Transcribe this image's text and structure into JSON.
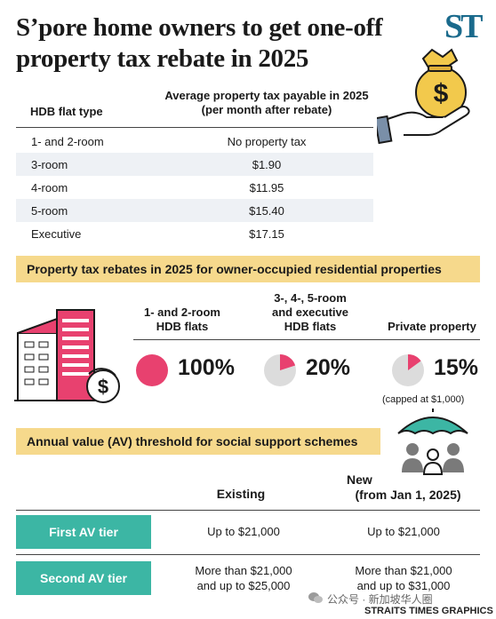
{
  "headline": {
    "line1": "S’pore home owners to get one-off",
    "line2": "property tax rebate in 2025"
  },
  "logo": "ST",
  "table1": {
    "col1_header": "HDB flat type",
    "col2_header_line1": "Average property tax payable in 2025",
    "col2_header_line2": "(per month after rebate)",
    "rows": [
      {
        "type": "1- and 2-room",
        "value": "No property tax"
      },
      {
        "type": "3-room",
        "value": "$1.90"
      },
      {
        "type": "4-room",
        "value": "$11.95"
      },
      {
        "type": "5-room",
        "value": "$15.40"
      },
      {
        "type": "Executive",
        "value": "$17.15"
      }
    ]
  },
  "rebates": {
    "band_title": "Property tax rebates in 2025 for owner-occupied residential properties",
    "columns": [
      {
        "line1": "1- and 2-room",
        "line2": "HDB flats",
        "percent": "100%",
        "fraction": 1.0
      },
      {
        "line0": "3-, 4-, 5-room",
        "line1": "and executive",
        "line2": "HDB flats",
        "percent": "20%",
        "fraction": 0.2
      },
      {
        "line2": "Private property",
        "percent": "15%",
        "fraction": 0.15
      }
    ],
    "cap_note": "(capped at $1,000)"
  },
  "av": {
    "band_title": "Annual value (AV) threshold for social support schemes",
    "col_existing": "Existing",
    "col_new_line1": "New",
    "col_new_line2": "(from Jan 1, 2025)",
    "tiers": [
      {
        "label": "First AV tier",
        "existing_line1": "Up to $21,000",
        "existing_line2": "",
        "new_line1": "Up to $21,000",
        "new_line2": ""
      },
      {
        "label": "Second AV tier",
        "existing_line1": "More than $21,000",
        "existing_line2": "and up to $25,000",
        "new_line1": "More than $21,000",
        "new_line2": "and up to $31,000"
      }
    ]
  },
  "watermark": "公众号 · 新加坡华人圈",
  "credit": "STRAITS TIMES GRAPHICS",
  "colors": {
    "pie_fill": "#e8416f",
    "pie_base": "#dcdcdc",
    "band": "#f6d98c",
    "tier": "#3cb6a4",
    "logo": "#1a6a8c"
  },
  "icons": [
    "money-bag-hand-icon",
    "building-coin-icon",
    "umbrella-family-icon",
    "wechat-icon"
  ]
}
